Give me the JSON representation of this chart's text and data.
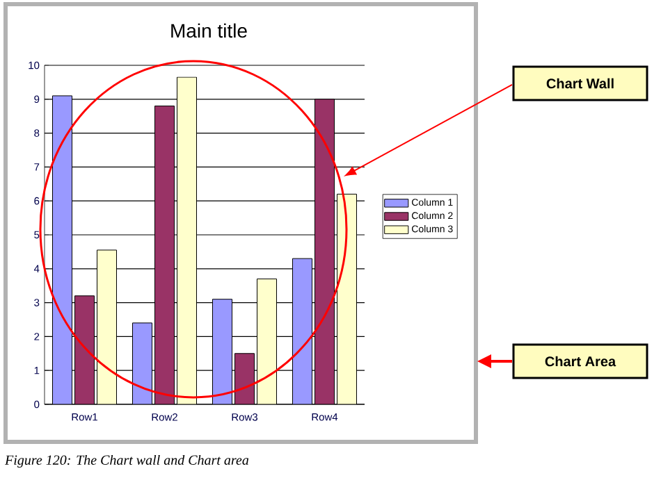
{
  "chart_data": {
    "type": "bar",
    "title": "Main title",
    "categories": [
      "Row1",
      "Row2",
      "Row3",
      "Row4"
    ],
    "series": [
      {
        "name": "Column 1",
        "color": "#9999ff",
        "values": [
          9.1,
          2.4,
          3.1,
          4.3
        ]
      },
      {
        "name": "Column 2",
        "color": "#993366",
        "values": [
          3.2,
          8.8,
          1.5,
          9.0
        ]
      },
      {
        "name": "Column 3",
        "color": "#ffffcc",
        "values": [
          4.55,
          9.65,
          3.7,
          6.2
        ]
      }
    ],
    "ylim": [
      0,
      10
    ],
    "yticks": [
      0,
      1,
      2,
      3,
      4,
      5,
      6,
      7,
      8,
      9,
      10
    ],
    "grid": "y",
    "legend": "right",
    "annotations": [
      "Chart Wall",
      "Chart Area",
      "Figure 120: The Chart wall and Chart area"
    ]
  }
}
